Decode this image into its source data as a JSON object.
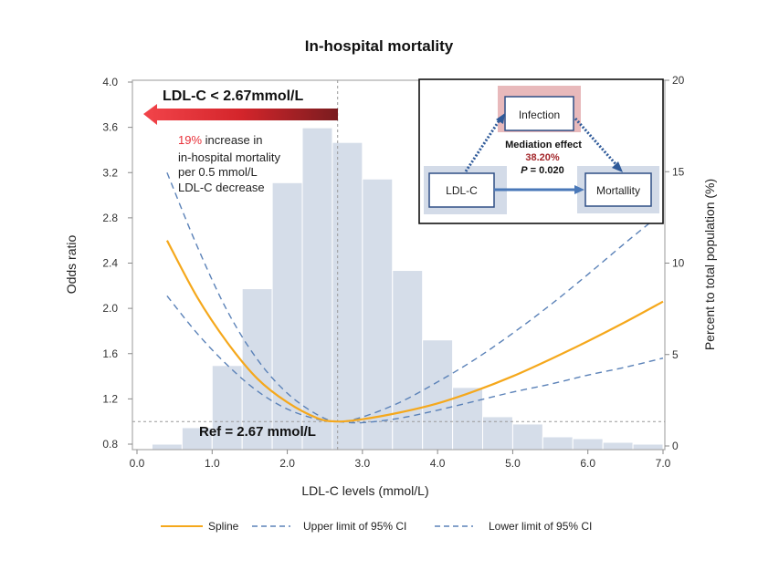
{
  "chart_data": {
    "type": "bar+line",
    "title": "In-hospital mortality",
    "xlabel": "LDL-C levels (mmol/L)",
    "ylabel_left": "Odds ratio",
    "ylabel_right": "Percent to total population (%)",
    "xlim": [
      0.0,
      7.0
    ],
    "ylim_left": [
      0.8,
      4.0
    ],
    "ylim_right": [
      0,
      20
    ],
    "x_ticks": [
      "0.0",
      "1.0",
      "2.0",
      "3.0",
      "4.0",
      "5.0",
      "6.0",
      "7.0"
    ],
    "y_left_ticks": [
      "0.8",
      "1.2",
      "1.6",
      "2.0",
      "2.4",
      "2.8",
      "3.2",
      "3.6",
      "4.0"
    ],
    "y_right_ticks": [
      "0",
      "5",
      "10",
      "15",
      "20"
    ],
    "histogram": {
      "bin_edges": [
        0.2,
        0.6,
        1.0,
        1.4,
        1.8,
        2.2,
        2.6,
        3.0,
        3.4,
        3.8,
        4.2,
        4.6,
        5.0,
        5.4,
        5.8,
        6.2,
        6.6,
        7.0
      ],
      "percent": [
        0.1,
        1.0,
        4.4,
        8.6,
        14.4,
        17.4,
        16.6,
        14.6,
        9.6,
        5.8,
        3.2,
        1.6,
        1.2,
        0.5,
        0.4,
        0.2,
        0.1
      ],
      "color": "#d5dde9"
    },
    "x": [
      0.4,
      0.8,
      1.2,
      1.6,
      2.0,
      2.4,
      2.67,
      3.0,
      3.5,
      4.0,
      4.5,
      5.0,
      5.5,
      6.0,
      6.5,
      7.0
    ],
    "series": [
      {
        "name": "Spline",
        "color": "#f5a81c",
        "style": "solid",
        "values": [
          2.6,
          2.1,
          1.7,
          1.38,
          1.17,
          1.03,
          1.0,
          1.02,
          1.08,
          1.16,
          1.27,
          1.4,
          1.55,
          1.71,
          1.88,
          2.06
        ]
      },
      {
        "name": "Upper limit of 95% CI",
        "color": "#5b82b8",
        "style": "dashed",
        "values": [
          3.2,
          2.55,
          1.98,
          1.55,
          1.25,
          1.06,
          1.0,
          1.04,
          1.17,
          1.35,
          1.55,
          1.78,
          2.03,
          2.3,
          2.58,
          2.85
        ]
      },
      {
        "name": "Lower limit of 95% CI",
        "color": "#5b82b8",
        "style": "dashed",
        "values": [
          2.11,
          1.78,
          1.5,
          1.27,
          1.11,
          1.02,
          1.0,
          0.99,
          1.03,
          1.1,
          1.18,
          1.26,
          1.33,
          1.41,
          1.48,
          1.56
        ]
      }
    ],
    "reference": {
      "x": 2.67,
      "y": 1.0,
      "label": "Ref = 2.67 mmol/L"
    },
    "annotation": {
      "arrow_label": "LDL-C < 2.67mmol/L",
      "highlight": "19%",
      "line1_rest": " increase in",
      "line2": "in-hospital mortality",
      "line3": "per 0.5 mmol/L",
      "line4": "LDL-C decrease",
      "highlight_color": "#e8313a"
    },
    "inset": {
      "mediator": "Infection",
      "exposure": "LDL-C",
      "outcome": "Mortallity",
      "effect_label": "Mediation effect",
      "effect_value": "38.20%",
      "p_label": "P",
      "p_value": " = 0.020",
      "effect_color": "#a3262a"
    },
    "legend_placement": "bottom",
    "grid": false
  }
}
